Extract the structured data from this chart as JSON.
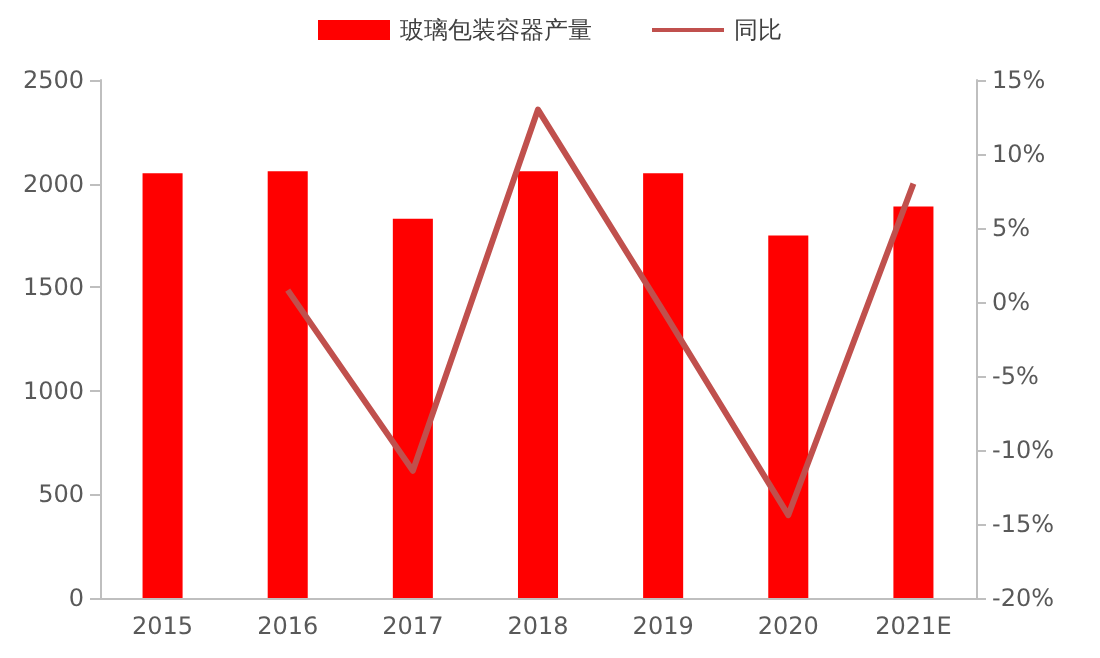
{
  "chart_data": {
    "type": "bar",
    "categories": [
      "2015",
      "2016",
      "2017",
      "2018",
      "2019",
      "2020",
      "2021E"
    ],
    "series": [
      {
        "name": "玻璃包装容器产量",
        "color": "#ff0000",
        "values": [
          2050,
          2060,
          1830,
          2060,
          2050,
          1750,
          1890
        ]
      },
      {
        "name": "同比",
        "type": "line",
        "axis": "y2",
        "color": "#c0504d",
        "values": [
          null,
          0.8,
          -11.4,
          13,
          -0.6,
          -14.4,
          8
        ]
      }
    ],
    "ylim": [
      0,
      2500
    ],
    "yticks": [
      0,
      500,
      1000,
      1500,
      2000,
      2500
    ],
    "y2lim": [
      -20,
      15
    ],
    "y2ticks": [
      {
        "value": -20,
        "label": "-20%"
      },
      {
        "value": -15,
        "label": "-15%"
      },
      {
        "value": -10,
        "label": "-10%"
      },
      {
        "value": -5,
        "label": "-5%"
      },
      {
        "value": 0,
        "label": "0%"
      },
      {
        "value": 5,
        "label": "5%"
      },
      {
        "value": 10,
        "label": "10%"
      },
      {
        "value": 15,
        "label": "15%"
      }
    ],
    "legend": "top",
    "grid": false,
    "marker": "none"
  }
}
